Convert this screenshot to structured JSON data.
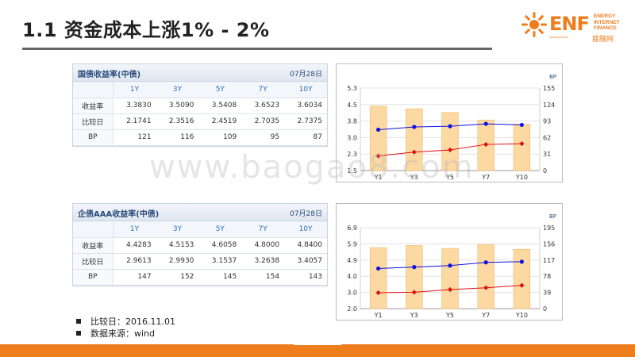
{
  "title": "1.1  资金成本上涨1% - 2%",
  "logo": {
    "brand": "ENF",
    "sub": [
      "ENERGY",
      "INTERNET",
      "FINANCE"
    ],
    "cn": "能融网",
    "url": "www.enf.com"
  },
  "watermark": "www.baogao8.com",
  "tables": [
    {
      "title": "国债收益率(中债)",
      "date": "07月28日",
      "columns": [
        "1Y",
        "3Y",
        "5Y",
        "7Y",
        "10Y"
      ],
      "rows": [
        {
          "label": "收益率",
          "values": [
            "3.3830",
            "3.5090",
            "3.5408",
            "3.6523",
            "3.6034"
          ]
        },
        {
          "label": "比较日",
          "values": [
            "2.1741",
            "2.3516",
            "2.4519",
            "2.7035",
            "2.7375"
          ]
        },
        {
          "label": "BP",
          "values": [
            "121",
            "116",
            "109",
            "95",
            "87"
          ]
        }
      ]
    },
    {
      "title": "企债AAA收益率(中债)",
      "date": "07月28日",
      "columns": [
        "1Y",
        "3Y",
        "5Y",
        "7Y",
        "10Y"
      ],
      "rows": [
        {
          "label": "收益率",
          "values": [
            "4.4283",
            "4.5153",
            "4.6058",
            "4.8000",
            "4.8400"
          ]
        },
        {
          "label": "比较日",
          "values": [
            "2.9613",
            "2.9930",
            "3.1537",
            "3.2638",
            "3.4057"
          ]
        },
        {
          "label": "BP",
          "values": [
            "147",
            "152",
            "145",
            "154",
            "143"
          ]
        }
      ]
    }
  ],
  "chart_data": [
    {
      "type": "bar",
      "categories": [
        "Y1",
        "Y3",
        "Y5",
        "Y7",
        "Y10"
      ],
      "left_ticks": [
        "5.3",
        "4.5",
        "3.8",
        "3.0",
        "2.3",
        "1.5"
      ],
      "right_ticks": [
        "155",
        "124",
        "93",
        "62",
        "31",
        "0"
      ],
      "right_unit": "BP",
      "ylim": [
        1.5,
        5.3
      ],
      "y2lim": [
        0,
        155
      ],
      "series": [
        {
          "kind": "bar",
          "axis": "right",
          "values": [
            121,
            116,
            109,
            95,
            87
          ],
          "color": "#fcd9a3"
        },
        {
          "kind": "line",
          "axis": "left",
          "values": [
            3.383,
            3.509,
            3.5408,
            3.6523,
            3.6034
          ],
          "color": "#1010e0"
        },
        {
          "kind": "line",
          "axis": "left",
          "values": [
            2.1741,
            2.3516,
            2.4519,
            2.7035,
            2.7375
          ],
          "color": "#e01010"
        }
      ]
    },
    {
      "type": "bar",
      "categories": [
        "Y1",
        "Y3",
        "Y5",
        "Y7",
        "Y10"
      ],
      "left_ticks": [
        "6.9",
        "5.9",
        "4.9",
        "4.0",
        "3.0",
        "2.0"
      ],
      "right_ticks": [
        "195",
        "156",
        "117",
        "78",
        "39",
        "0"
      ],
      "right_unit": "BP",
      "ylim": [
        2.0,
        6.9
      ],
      "y2lim": [
        0,
        195
      ],
      "series": [
        {
          "kind": "bar",
          "axis": "right",
          "values": [
            147,
            152,
            145,
            154,
            143
          ],
          "color": "#fcd9a3"
        },
        {
          "kind": "line",
          "axis": "left",
          "values": [
            4.4283,
            4.5153,
            4.6058,
            4.8,
            4.84
          ],
          "color": "#1010e0"
        },
        {
          "kind": "line",
          "axis": "left",
          "values": [
            2.9613,
            2.993,
            3.1537,
            3.2638,
            3.4057
          ],
          "color": "#e01010"
        }
      ]
    }
  ],
  "notes": [
    "比较日：2016.11.01",
    "数据来源：wind"
  ]
}
